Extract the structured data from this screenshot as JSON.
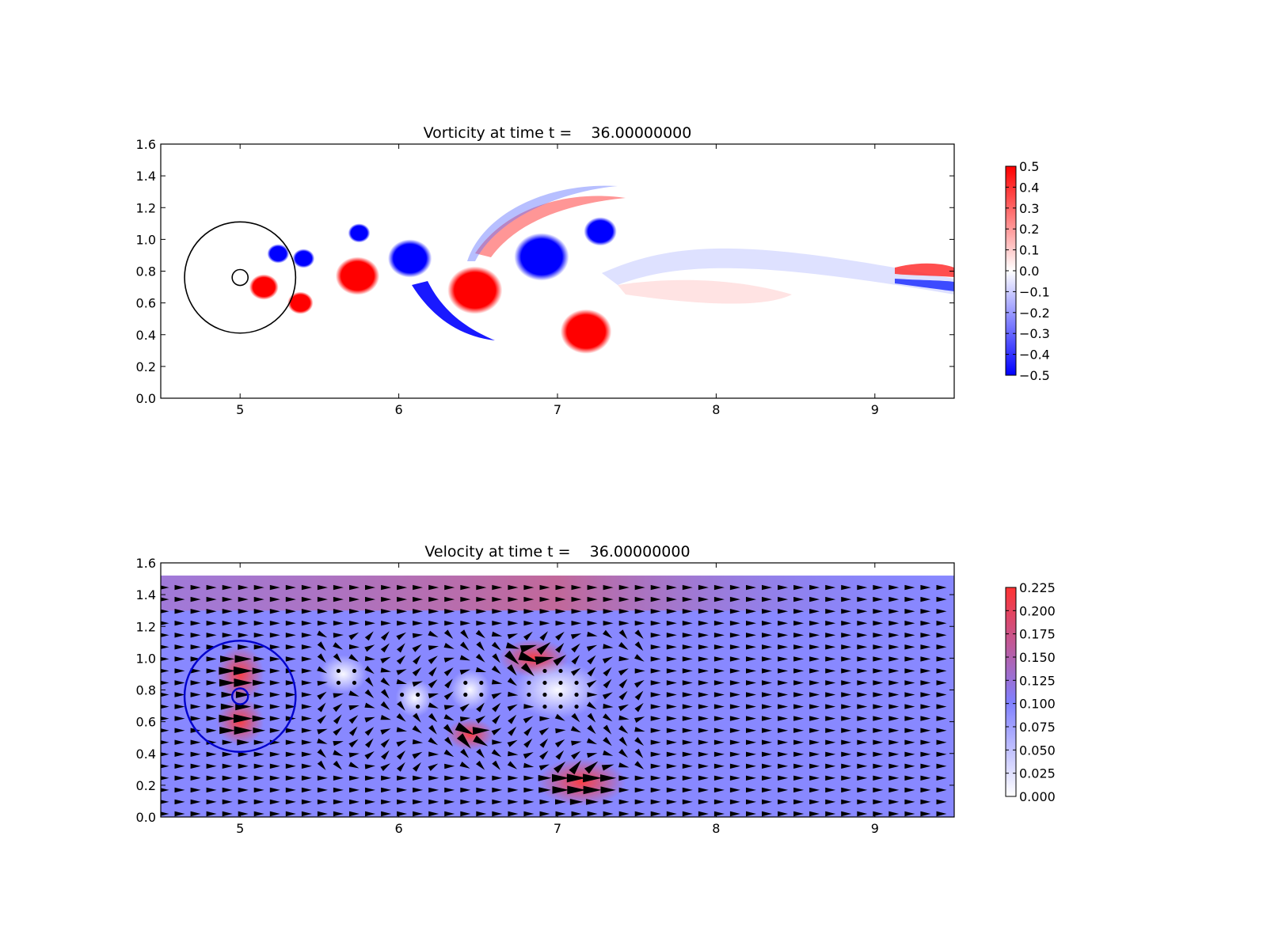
{
  "chart_data": [
    {
      "type": "heatmap",
      "title": "Vorticity at time t =    36.00000000",
      "xlabel": "",
      "ylabel": "",
      "xlim": [
        4.5,
        9.5
      ],
      "ylim": [
        0.0,
        1.6
      ],
      "xticks": [
        "5",
        "6",
        "7",
        "8",
        "9"
      ],
      "yticks": [
        "0.0",
        "0.2",
        "0.4",
        "0.6",
        "0.8",
        "1.0",
        "1.2",
        "1.4",
        "1.6"
      ],
      "colormap": {
        "low": "#0000ff",
        "mid": "#ffffff",
        "high": "#ff0000"
      },
      "colorbar": {
        "range": [
          -0.5,
          0.5
        ],
        "ticks": [
          "0.5",
          "0.4",
          "0.3",
          "0.2",
          "0.1",
          "0.0",
          "−0.1",
          "−0.2",
          "−0.3",
          "−0.4",
          "−0.5"
        ]
      },
      "vortices": [
        {
          "x": 5.4,
          "y": 0.88,
          "r": 0.06,
          "sign": "negative"
        },
        {
          "x": 5.24,
          "y": 0.91,
          "r": 0.06,
          "sign": "negative"
        },
        {
          "x": 5.15,
          "y": 0.7,
          "r": 0.08,
          "sign": "positive"
        },
        {
          "x": 5.38,
          "y": 0.6,
          "r": 0.07,
          "sign": "positive"
        },
        {
          "x": 5.74,
          "y": 0.77,
          "r": 0.12,
          "sign": "positive"
        },
        {
          "x": 5.75,
          "y": 1.04,
          "r": 0.06,
          "sign": "negative"
        },
        {
          "x": 6.07,
          "y": 0.88,
          "r": 0.12,
          "sign": "negative"
        },
        {
          "x": 6.48,
          "y": 0.68,
          "r": 0.15,
          "sign": "positive"
        },
        {
          "x": 6.9,
          "y": 0.89,
          "r": 0.15,
          "sign": "negative"
        },
        {
          "x": 7.27,
          "y": 1.05,
          "r": 0.09,
          "sign": "negative"
        },
        {
          "x": 7.18,
          "y": 0.42,
          "r": 0.14,
          "sign": "positive"
        }
      ],
      "overlays": [
        {
          "shape": "circle",
          "x": 5.0,
          "y": 0.76,
          "r": 0.35,
          "color": "#000000"
        },
        {
          "shape": "circle",
          "x": 5.0,
          "y": 0.76,
          "r": 0.05,
          "color": "#000000"
        }
      ]
    },
    {
      "type": "heatmap",
      "title": "Velocity at time t =    36.00000000",
      "xlabel": "",
      "ylabel": "",
      "xlim": [
        4.5,
        9.5
      ],
      "ylim": [
        0.0,
        1.6
      ],
      "field_ylim": [
        0.0,
        1.52
      ],
      "xticks": [
        "5",
        "6",
        "7",
        "8",
        "9"
      ],
      "yticks": [
        "0.0",
        "0.2",
        "0.4",
        "0.6",
        "0.8",
        "1.0",
        "1.2",
        "1.4",
        "1.6"
      ],
      "colormap": {
        "low": "#ffffff",
        "mid": "#8080ff",
        "high": "#ff3333"
      },
      "colorbar": {
        "range": [
          0.0,
          0.225
        ],
        "ticks": [
          "0.225",
          "0.200",
          "0.175",
          "0.150",
          "0.125",
          "0.100",
          "0.075",
          "0.050",
          "0.025",
          "0.000"
        ]
      },
      "background_speed": 0.1,
      "arrows": "quiver",
      "slow_regions": [
        {
          "x": 5.65,
          "y": 0.9,
          "rx": 0.15,
          "ry": 0.12
        },
        {
          "x": 6.1,
          "y": 0.75,
          "rx": 0.12,
          "ry": 0.12
        },
        {
          "x": 6.45,
          "y": 0.8,
          "rx": 0.13,
          "ry": 0.13
        },
        {
          "x": 7.0,
          "y": 0.8,
          "rx": 0.28,
          "ry": 0.18
        }
      ],
      "fast_regions": [
        {
          "x": 6.85,
          "y": 1.0,
          "rx": 0.22,
          "ry": 0.12
        },
        {
          "x": 7.15,
          "y": 0.22,
          "rx": 0.28,
          "ry": 0.15
        },
        {
          "x": 6.45,
          "y": 0.52,
          "rx": 0.15,
          "ry": 0.1
        },
        {
          "x": 5.0,
          "y": 0.9,
          "rx": 0.15,
          "ry": 0.18
        },
        {
          "x": 5.0,
          "y": 0.6,
          "rx": 0.15,
          "ry": 0.15
        }
      ],
      "overlays": [
        {
          "shape": "circle",
          "x": 5.0,
          "y": 0.76,
          "r": 0.35,
          "color": "#0000cc"
        },
        {
          "shape": "circle",
          "x": 5.0,
          "y": 0.76,
          "r": 0.05,
          "color": "#0000cc"
        }
      ]
    }
  ]
}
